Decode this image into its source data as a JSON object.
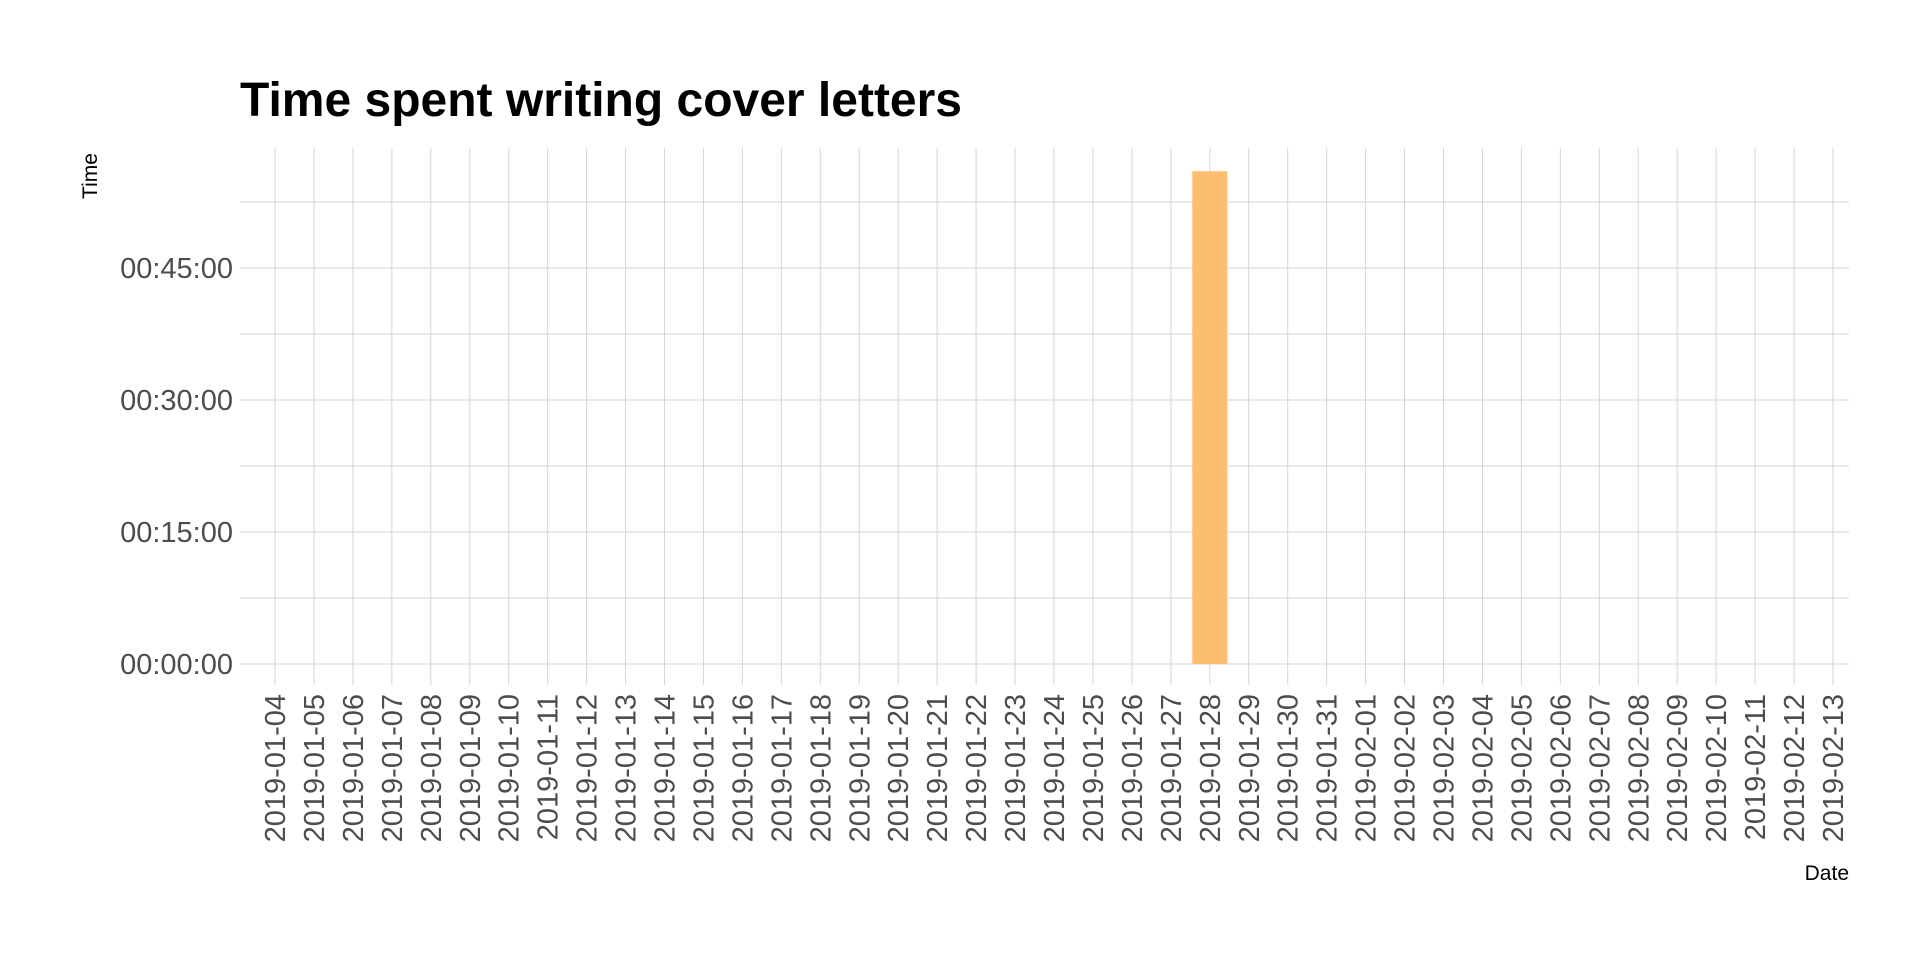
{
  "chart_data": {
    "type": "bar",
    "title": "Time spent writing cover letters",
    "xlabel": "Date",
    "ylabel": "Time",
    "categories": [
      "2019-01-04",
      "2019-01-05",
      "2019-01-06",
      "2019-01-07",
      "2019-01-08",
      "2019-01-09",
      "2019-01-10",
      "2019-01-11",
      "2019-01-12",
      "2019-01-13",
      "2019-01-14",
      "2019-01-15",
      "2019-01-16",
      "2019-01-17",
      "2019-01-18",
      "2019-01-19",
      "2019-01-20",
      "2019-01-21",
      "2019-01-22",
      "2019-01-23",
      "2019-01-24",
      "2019-01-25",
      "2019-01-26",
      "2019-01-27",
      "2019-01-28",
      "2019-01-29",
      "2019-01-30",
      "2019-01-31",
      "2019-02-01",
      "2019-02-02",
      "2019-02-03",
      "2019-02-04",
      "2019-02-05",
      "2019-02-06",
      "2019-02-07",
      "2019-02-08",
      "2019-02-09",
      "2019-02-10",
      "2019-02-11",
      "2019-02-12",
      "2019-02-13"
    ],
    "bars": [
      {
        "date": "2019-01-28",
        "value": "00:56:00"
      }
    ],
    "y_ticks": [
      "00:00:00",
      "00:15:00",
      "00:30:00",
      "00:45:00"
    ],
    "ylim": [
      "00:00:00",
      "01:00:00"
    ],
    "bar_color": "#FDBF6F",
    "grid": true
  }
}
